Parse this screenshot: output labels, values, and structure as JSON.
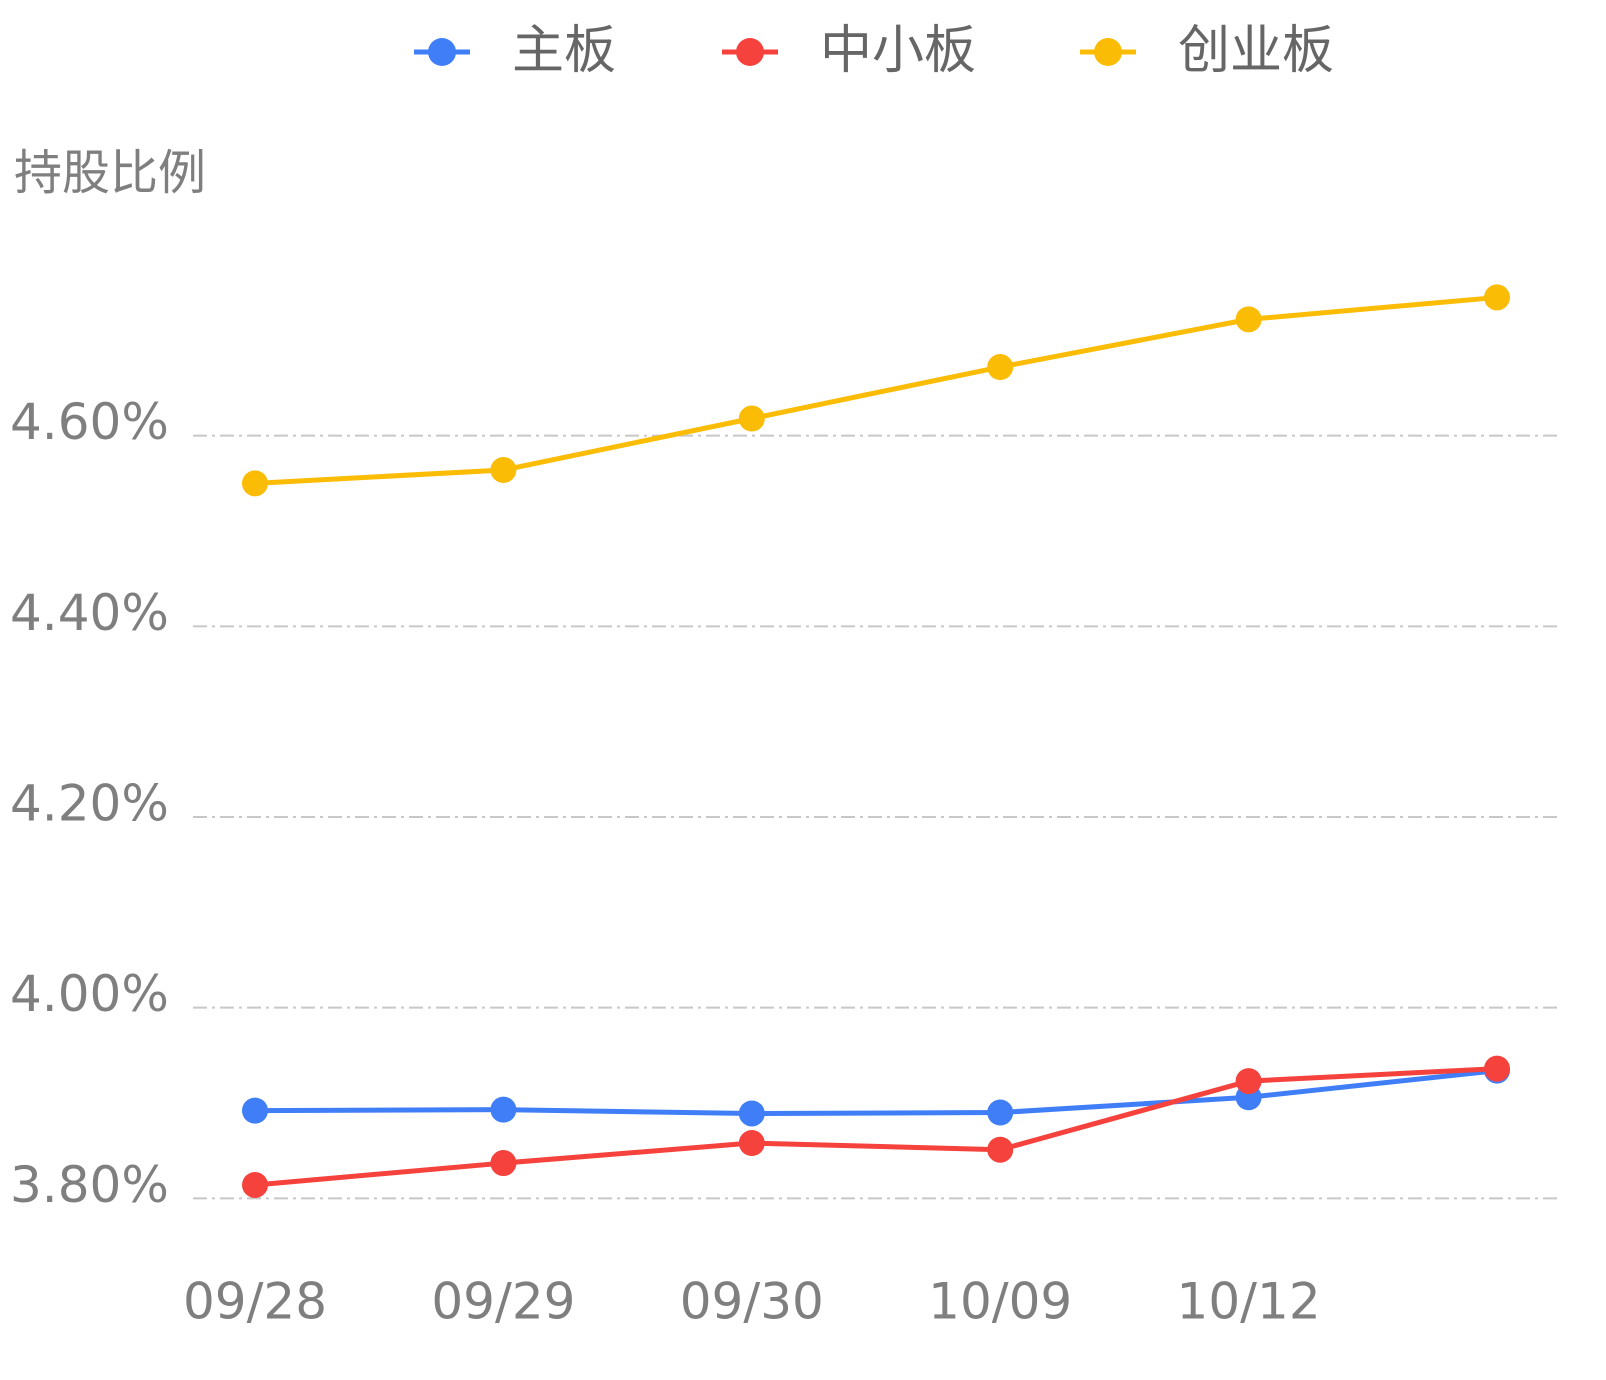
{
  "chart_data": {
    "type": "line",
    "y_label": "持股比例",
    "categories": [
      "09/28",
      "09/29",
      "09/30",
      "10/09",
      "10/12",
      null
    ],
    "series": [
      {
        "name": "主板",
        "color": "#3f7ef7",
        "values": [
          3.892,
          3.893,
          3.889,
          3.89,
          3.906,
          3.934
        ]
      },
      {
        "name": "中小板",
        "color": "#f5423d",
        "values": [
          3.814,
          3.837,
          3.858,
          3.851,
          3.923,
          3.936
        ]
      },
      {
        "name": "创业板",
        "color": "#fbbc05",
        "values": [
          4.55,
          4.564,
          4.618,
          4.672,
          4.722,
          4.745
        ]
      }
    ],
    "ylim": [
      3.75,
      4.8
    ],
    "yticks": [
      {
        "value": 3.8,
        "label": "3.80%"
      },
      {
        "value": 4.0,
        "label": "4.00%"
      },
      {
        "value": 4.2,
        "label": "4.20%"
      },
      {
        "value": 4.4,
        "label": "4.40%"
      },
      {
        "value": 4.6,
        "label": "4.60%"
      }
    ],
    "grid": true
  }
}
